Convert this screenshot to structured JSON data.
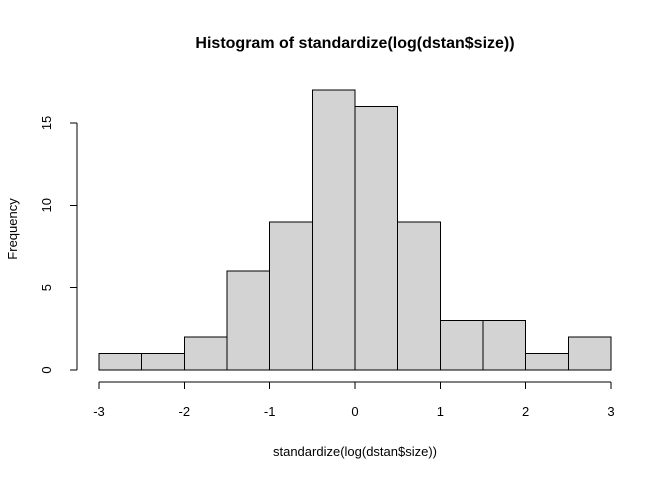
{
  "chart_data": {
    "type": "bar",
    "title": "Histogram of standardize(log(dstan$size))",
    "xlabel": "standardize(log(dstan$size))",
    "ylabel": "Frequency",
    "bin_edges": [
      -3,
      -2.5,
      -2,
      -1.5,
      -1,
      -0.5,
      0,
      0.5,
      1,
      1.5,
      2,
      2.5,
      3
    ],
    "values": [
      1,
      1,
      2,
      6,
      9,
      17,
      16,
      9,
      3,
      3,
      1,
      2
    ],
    "xlim": [
      -3,
      3
    ],
    "ylim": [
      0,
      17
    ],
    "x_ticks": [
      -3,
      -2,
      -1,
      0,
      1,
      2,
      3
    ],
    "x_tick_labels": [
      "-3",
      "-2",
      "-1",
      "0",
      "1",
      "2",
      "3"
    ],
    "y_ticks": [
      0,
      5,
      10,
      15
    ],
    "y_tick_labels": [
      "0",
      "5",
      "10",
      "15"
    ],
    "grid": false,
    "bar_fill": "#d3d3d3",
    "bar_stroke": "#000000"
  }
}
